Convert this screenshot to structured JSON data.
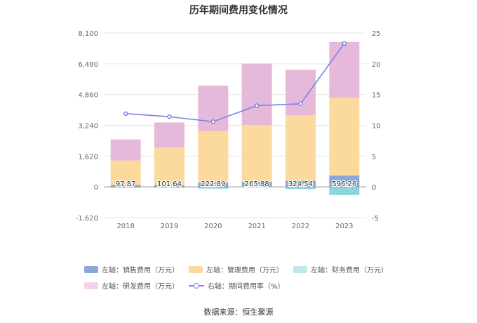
{
  "chart_data": {
    "type": "bar",
    "title": "历年期间费用变化情况",
    "categories": [
      "2018",
      "2019",
      "2020",
      "2021",
      "2022",
      "2023"
    ],
    "y_left": {
      "ticks": [
        "8,100",
        "6,480",
        "4,860",
        "3,240",
        "1,620",
        "0",
        "-1,620"
      ],
      "min": -1620,
      "max": 8100
    },
    "y_right": {
      "ticks": [
        "25",
        "20",
        "15",
        "10",
        "5",
        "0",
        "-5"
      ],
      "min": -5,
      "max": 25
    },
    "series": [
      {
        "name": "左轴：销售费用（万元）",
        "values": [
          97.87,
          101.64,
          222.89,
          265.88,
          324.54,
          596.26
        ],
        "color": "#8aa8d8",
        "labels": [
          "97.87",
          "101.64",
          "222.89",
          "265.88",
          "324.54",
          "596.26"
        ]
      },
      {
        "name": "左轴：管理费用（万元）",
        "values": [
          1290,
          1980,
          2720,
          2990,
          3450,
          4100
        ],
        "color": "#fcd99c"
      },
      {
        "name": "左轴：财务费用（万元）",
        "values": [
          -40,
          -40,
          -90,
          30,
          -110,
          -430
        ],
        "color": "#8cd6d9"
      },
      {
        "name": "左轴：研发费用（万元）",
        "values": [
          1110,
          1310,
          2390,
          3230,
          2390,
          2930
        ],
        "color": "#e6b8d9"
      },
      {
        "name": "右轴：期间费用率（%）",
        "type": "line",
        "axis": "right",
        "values": [
          11.9,
          11.4,
          10.6,
          13.2,
          13.5,
          23.3
        ],
        "color": "#7b83e8"
      }
    ],
    "grid": true,
    "legend_position": "bottom"
  },
  "source": "数据来源：恒生聚源"
}
